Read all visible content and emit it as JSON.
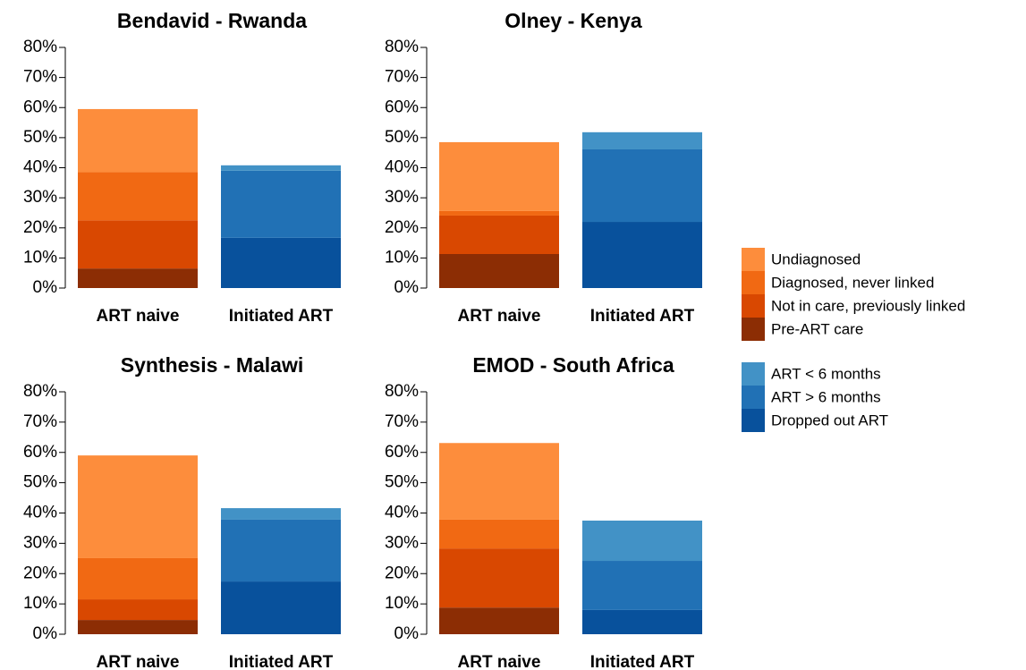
{
  "chart_data": [
    {
      "type": "bar",
      "stacked": true,
      "title": "Bendavid - Rwanda",
      "categories": [
        "ART naive",
        "Initiated ART"
      ],
      "ylim": [
        0,
        80
      ],
      "yticks": [
        {
          "value": 0,
          "label": "0%"
        },
        {
          "value": 10,
          "label": "10%"
        },
        {
          "value": 20,
          "label": "20%"
        },
        {
          "value": 30,
          "label": "30%"
        },
        {
          "value": 40,
          "label": "40%"
        },
        {
          "value": 50,
          "label": "50%"
        },
        {
          "value": 60,
          "label": "60%"
        },
        {
          "value": 70,
          "label": "70%"
        },
        {
          "value": 80,
          "label": "80%"
        }
      ],
      "series": [
        {
          "name": "Undiagnosed",
          "color": "#fd8d3c",
          "values": [
            21,
            null
          ]
        },
        {
          "name": "Diagnosed, never linked",
          "color": "#f16913",
          "values": [
            16,
            null
          ]
        },
        {
          "name": "Not in care, previously linked",
          "color": "#d94801",
          "values": [
            16,
            null
          ]
        },
        {
          "name": "Pre-ART care",
          "color": "#8c2d04",
          "values": [
            6.5,
            null
          ]
        },
        {
          "name": "ART < 6 months",
          "color": "#4292c6",
          "values": [
            null,
            1.8
          ]
        },
        {
          "name": "ART > 6 months",
          "color": "#2171b5",
          "values": [
            null,
            22.3
          ]
        },
        {
          "name": "Dropped out ART",
          "color": "#08519c",
          "values": [
            null,
            16.7
          ]
        }
      ]
    },
    {
      "type": "bar",
      "stacked": true,
      "title": "Olney - Kenya",
      "categories": [
        "ART naive",
        "Initiated ART"
      ],
      "ylim": [
        0,
        80
      ],
      "yticks": [
        {
          "value": 0,
          "label": "0%"
        },
        {
          "value": 10,
          "label": "10%"
        },
        {
          "value": 20,
          "label": "20%"
        },
        {
          "value": 30,
          "label": "30%"
        },
        {
          "value": 40,
          "label": "40%"
        },
        {
          "value": 50,
          "label": "50%"
        },
        {
          "value": 60,
          "label": "60%"
        },
        {
          "value": 70,
          "label": "70%"
        },
        {
          "value": 80,
          "label": "80%"
        }
      ],
      "series": [
        {
          "name": "Undiagnosed",
          "color": "#fd8d3c",
          "values": [
            22.9,
            null
          ]
        },
        {
          "name": "Diagnosed, never linked",
          "color": "#f16913",
          "values": [
            1.5,
            null
          ]
        },
        {
          "name": "Not in care, previously linked",
          "color": "#d94801",
          "values": [
            12.8,
            null
          ]
        },
        {
          "name": "Pre-ART care",
          "color": "#8c2d04",
          "values": [
            11.3,
            null
          ]
        },
        {
          "name": "ART < 6 months",
          "color": "#4292c6",
          "values": [
            null,
            5.7
          ]
        },
        {
          "name": "ART > 6 months",
          "color": "#2171b5",
          "values": [
            null,
            24.1
          ]
        },
        {
          "name": "Dropped out ART",
          "color": "#08519c",
          "values": [
            null,
            22
          ]
        }
      ]
    },
    {
      "type": "bar",
      "stacked": true,
      "title": "Synthesis - Malawi",
      "categories": [
        "ART naive",
        "Initiated ART"
      ],
      "ylim": [
        0,
        80
      ],
      "yticks": [
        {
          "value": 0,
          "label": "0%"
        },
        {
          "value": 10,
          "label": "10%"
        },
        {
          "value": 20,
          "label": "20%"
        },
        {
          "value": 30,
          "label": "30%"
        },
        {
          "value": 40,
          "label": "40%"
        },
        {
          "value": 50,
          "label": "50%"
        },
        {
          "value": 60,
          "label": "60%"
        },
        {
          "value": 70,
          "label": "70%"
        },
        {
          "value": 80,
          "label": "80%"
        }
      ],
      "series": [
        {
          "name": "Undiagnosed",
          "color": "#fd8d3c",
          "values": [
            33.9,
            null
          ]
        },
        {
          "name": "Diagnosed, never linked",
          "color": "#f16913",
          "values": [
            13.6,
            null
          ]
        },
        {
          "name": "Not in care, previously linked",
          "color": "#d94801",
          "values": [
            6.8,
            null
          ]
        },
        {
          "name": "Pre-ART care",
          "color": "#8c2d04",
          "values": [
            4.7,
            null
          ]
        },
        {
          "name": "ART < 6 months",
          "color": "#4292c6",
          "values": [
            null,
            3.8
          ]
        },
        {
          "name": "ART > 6 months",
          "color": "#2171b5",
          "values": [
            null,
            20.4
          ]
        },
        {
          "name": "Dropped out ART",
          "color": "#08519c",
          "values": [
            null,
            17.4
          ]
        }
      ]
    },
    {
      "type": "bar",
      "stacked": true,
      "title": "EMOD - South Africa",
      "categories": [
        "ART naive",
        "Initiated ART"
      ],
      "ylim": [
        0,
        80
      ],
      "yticks": [
        {
          "value": 0,
          "label": "0%"
        },
        {
          "value": 10,
          "label": "10%"
        },
        {
          "value": 20,
          "label": "20%"
        },
        {
          "value": 30,
          "label": "30%"
        },
        {
          "value": 40,
          "label": "40%"
        },
        {
          "value": 50,
          "label": "50%"
        },
        {
          "value": 60,
          "label": "60%"
        },
        {
          "value": 70,
          "label": "70%"
        },
        {
          "value": 80,
          "label": "80%"
        }
      ],
      "series": [
        {
          "name": "Undiagnosed",
          "color": "#fd8d3c",
          "values": [
            25.3,
            null
          ]
        },
        {
          "name": "Diagnosed, never linked",
          "color": "#f16913",
          "values": [
            9.5,
            null
          ]
        },
        {
          "name": "Not in care, previously linked",
          "color": "#d94801",
          "values": [
            19.5,
            null
          ]
        },
        {
          "name": "Pre-ART care",
          "color": "#8c2d04",
          "values": [
            8.8,
            null
          ]
        },
        {
          "name": "ART < 6 months",
          "color": "#4292c6",
          "values": [
            null,
            13.3
          ]
        },
        {
          "name": "ART > 6 months",
          "color": "#2171b5",
          "values": [
            null,
            16.2
          ]
        },
        {
          "name": "Dropped out ART",
          "color": "#08519c",
          "values": [
            null,
            8
          ]
        }
      ]
    }
  ]
}
